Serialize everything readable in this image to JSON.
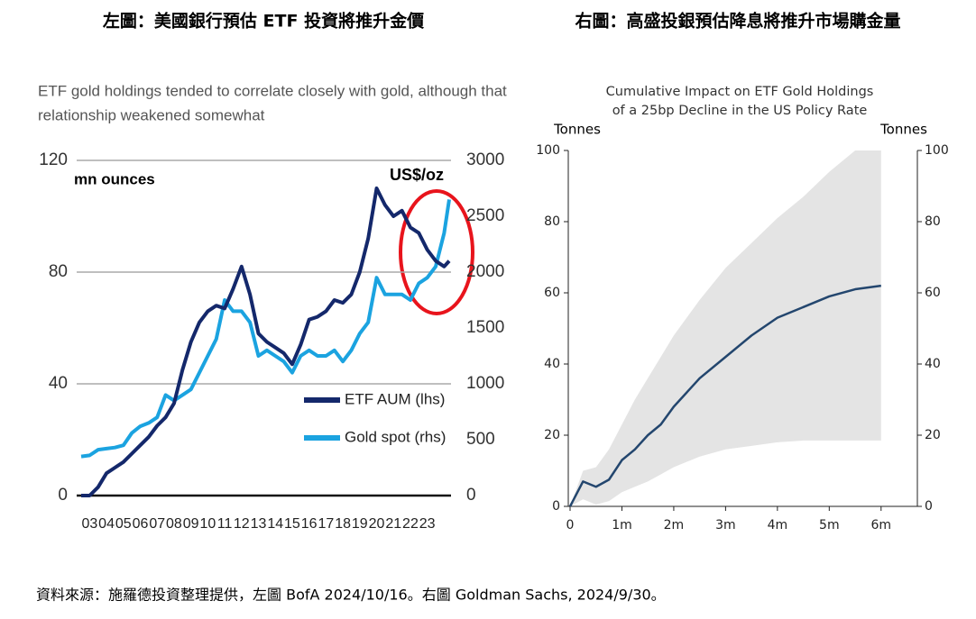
{
  "headings": [
    "左圖：美國銀行預估 ETF 投資將推升金價",
    "右圖：高盛投銀預估降息將推升市場購金量"
  ],
  "source": "資料來源：施羅德投資整理提供，左圖  BofA 2024/10/16。右圖  Goldman Sachs, 2024/9/30。",
  "chart_data": [
    {
      "type": "line",
      "title": [
        "ETF gold holdings tended to correlate closely with gold, although that",
        "relationship weakened somewhat"
      ],
      "y_label": "mn ounces",
      "y2_label": "US$/oz",
      "x": [
        3,
        3.5,
        4,
        4.5,
        5,
        5.5,
        6,
        6.5,
        7,
        7.5,
        8,
        8.5,
        9,
        9.5,
        10,
        10.5,
        11,
        11.5,
        12,
        12.5,
        13,
        13.5,
        14,
        14.5,
        15,
        15.5,
        16,
        16.5,
        17,
        17.5,
        18,
        18.5,
        19,
        19.5,
        20,
        20.5,
        21,
        21.5,
        22,
        22.5,
        23,
        23.5,
        24,
        24.5,
        24.8
      ],
      "xlim": [
        3,
        24.8
      ],
      "xticks": [
        {
          "value": 3.5,
          "label": "03"
        },
        {
          "value": 4.5,
          "label": "04"
        },
        {
          "value": 5.5,
          "label": "05"
        },
        {
          "value": 6.5,
          "label": "06"
        },
        {
          "value": 7.5,
          "label": "07"
        },
        {
          "value": 8.5,
          "label": "08"
        },
        {
          "value": 9.5,
          "label": "09"
        },
        {
          "value": 10.5,
          "label": "10"
        },
        {
          "value": 11.5,
          "label": "11"
        },
        {
          "value": 12.5,
          "label": "12"
        },
        {
          "value": 13.5,
          "label": "13"
        },
        {
          "value": 14.5,
          "label": "14"
        },
        {
          "value": 15.5,
          "label": "15"
        },
        {
          "value": 16.5,
          "label": "16"
        },
        {
          "value": 17.5,
          "label": "17"
        },
        {
          "value": 18.5,
          "label": "18"
        },
        {
          "value": 19.5,
          "label": "19"
        },
        {
          "value": 20.5,
          "label": "20"
        },
        {
          "value": 21.5,
          "label": "21"
        },
        {
          "value": 22.5,
          "label": "22"
        },
        {
          "value": 23.5,
          "label": "23"
        }
      ],
      "ylim": [
        0,
        120
      ],
      "yticks": [
        0,
        40,
        80,
        120
      ],
      "y2lim": [
        0,
        3000
      ],
      "y2ticks": [
        0,
        500,
        1000,
        1500,
        2000,
        2500,
        3000
      ],
      "grid": true,
      "legend": "lower right",
      "series": [
        {
          "name": "ETF AUM (lhs)",
          "color": "#14286b",
          "values": [
            0,
            0,
            3,
            8,
            10,
            12,
            15,
            18,
            21,
            25,
            28,
            33,
            45,
            55,
            62,
            66,
            68,
            67,
            74,
            82,
            72,
            58,
            55,
            53,
            51,
            47,
            54,
            63,
            64,
            66,
            70,
            69,
            72,
            80,
            92,
            110,
            104,
            100,
            102,
            96,
            94,
            88,
            84,
            82,
            84
          ]
        },
        {
          "name": "Gold spot (rhs)",
          "color": "#1ba3e0",
          "axis": "y2",
          "values": [
            350,
            360,
            410,
            420,
            430,
            450,
            560,
            620,
            650,
            700,
            900,
            850,
            900,
            950,
            1100,
            1250,
            1400,
            1750,
            1650,
            1650,
            1550,
            1250,
            1300,
            1250,
            1200,
            1100,
            1250,
            1300,
            1250,
            1250,
            1300,
            1200,
            1300,
            1450,
            1550,
            1950,
            1800,
            1800,
            1800,
            1750,
            1900,
            1950,
            2050,
            2350,
            2650
          ]
        }
      ]
    },
    {
      "type": "line",
      "title": [
        "Cumulative Impact on ETF Gold Holdings",
        "of a 25bp Decline in the US Policy Rate"
      ],
      "y_label": "Tonnes",
      "y2_label": "Tonnes",
      "x": [
        0,
        0.25,
        0.5,
        0.75,
        1,
        1.25,
        1.5,
        1.75,
        2,
        2.5,
        3,
        3.5,
        4,
        4.5,
        5,
        5.5,
        6
      ],
      "xlim": [
        0,
        6.7
      ],
      "xticks": [
        0,
        {
          "value": 1,
          "label": "1m"
        },
        {
          "value": 2,
          "label": "2m"
        },
        {
          "value": 3,
          "label": "3m"
        },
        {
          "value": 4,
          "label": "4m"
        },
        {
          "value": 5,
          "label": "5m"
        },
        {
          "value": 6,
          "label": "6m"
        }
      ],
      "ylim": [
        0,
        100
      ],
      "yticks": [
        0,
        20,
        40,
        60,
        80,
        100
      ],
      "y2lim": [
        0,
        100
      ],
      "y2ticks": [
        0,
        20,
        40,
        60,
        80,
        100
      ],
      "grid": false,
      "series": [
        {
          "color": "#23466e",
          "values": [
            0,
            7,
            5.5,
            7.5,
            13,
            16,
            20,
            23,
            28,
            36,
            42,
            48,
            53,
            56,
            59,
            61,
            62
          ]
        }
      ],
      "band": {
        "color": "#e4e4e4",
        "lower": [
          0,
          2,
          0.5,
          1.5,
          4,
          5.5,
          7,
          9,
          11,
          14,
          16,
          17,
          18,
          18.5,
          18.5,
          18.5,
          18.5
        ],
        "upper": [
          0,
          10,
          11,
          16,
          23,
          30,
          36,
          42,
          48,
          58,
          67,
          74,
          81,
          87,
          94,
          100,
          100
        ]
      }
    }
  ]
}
